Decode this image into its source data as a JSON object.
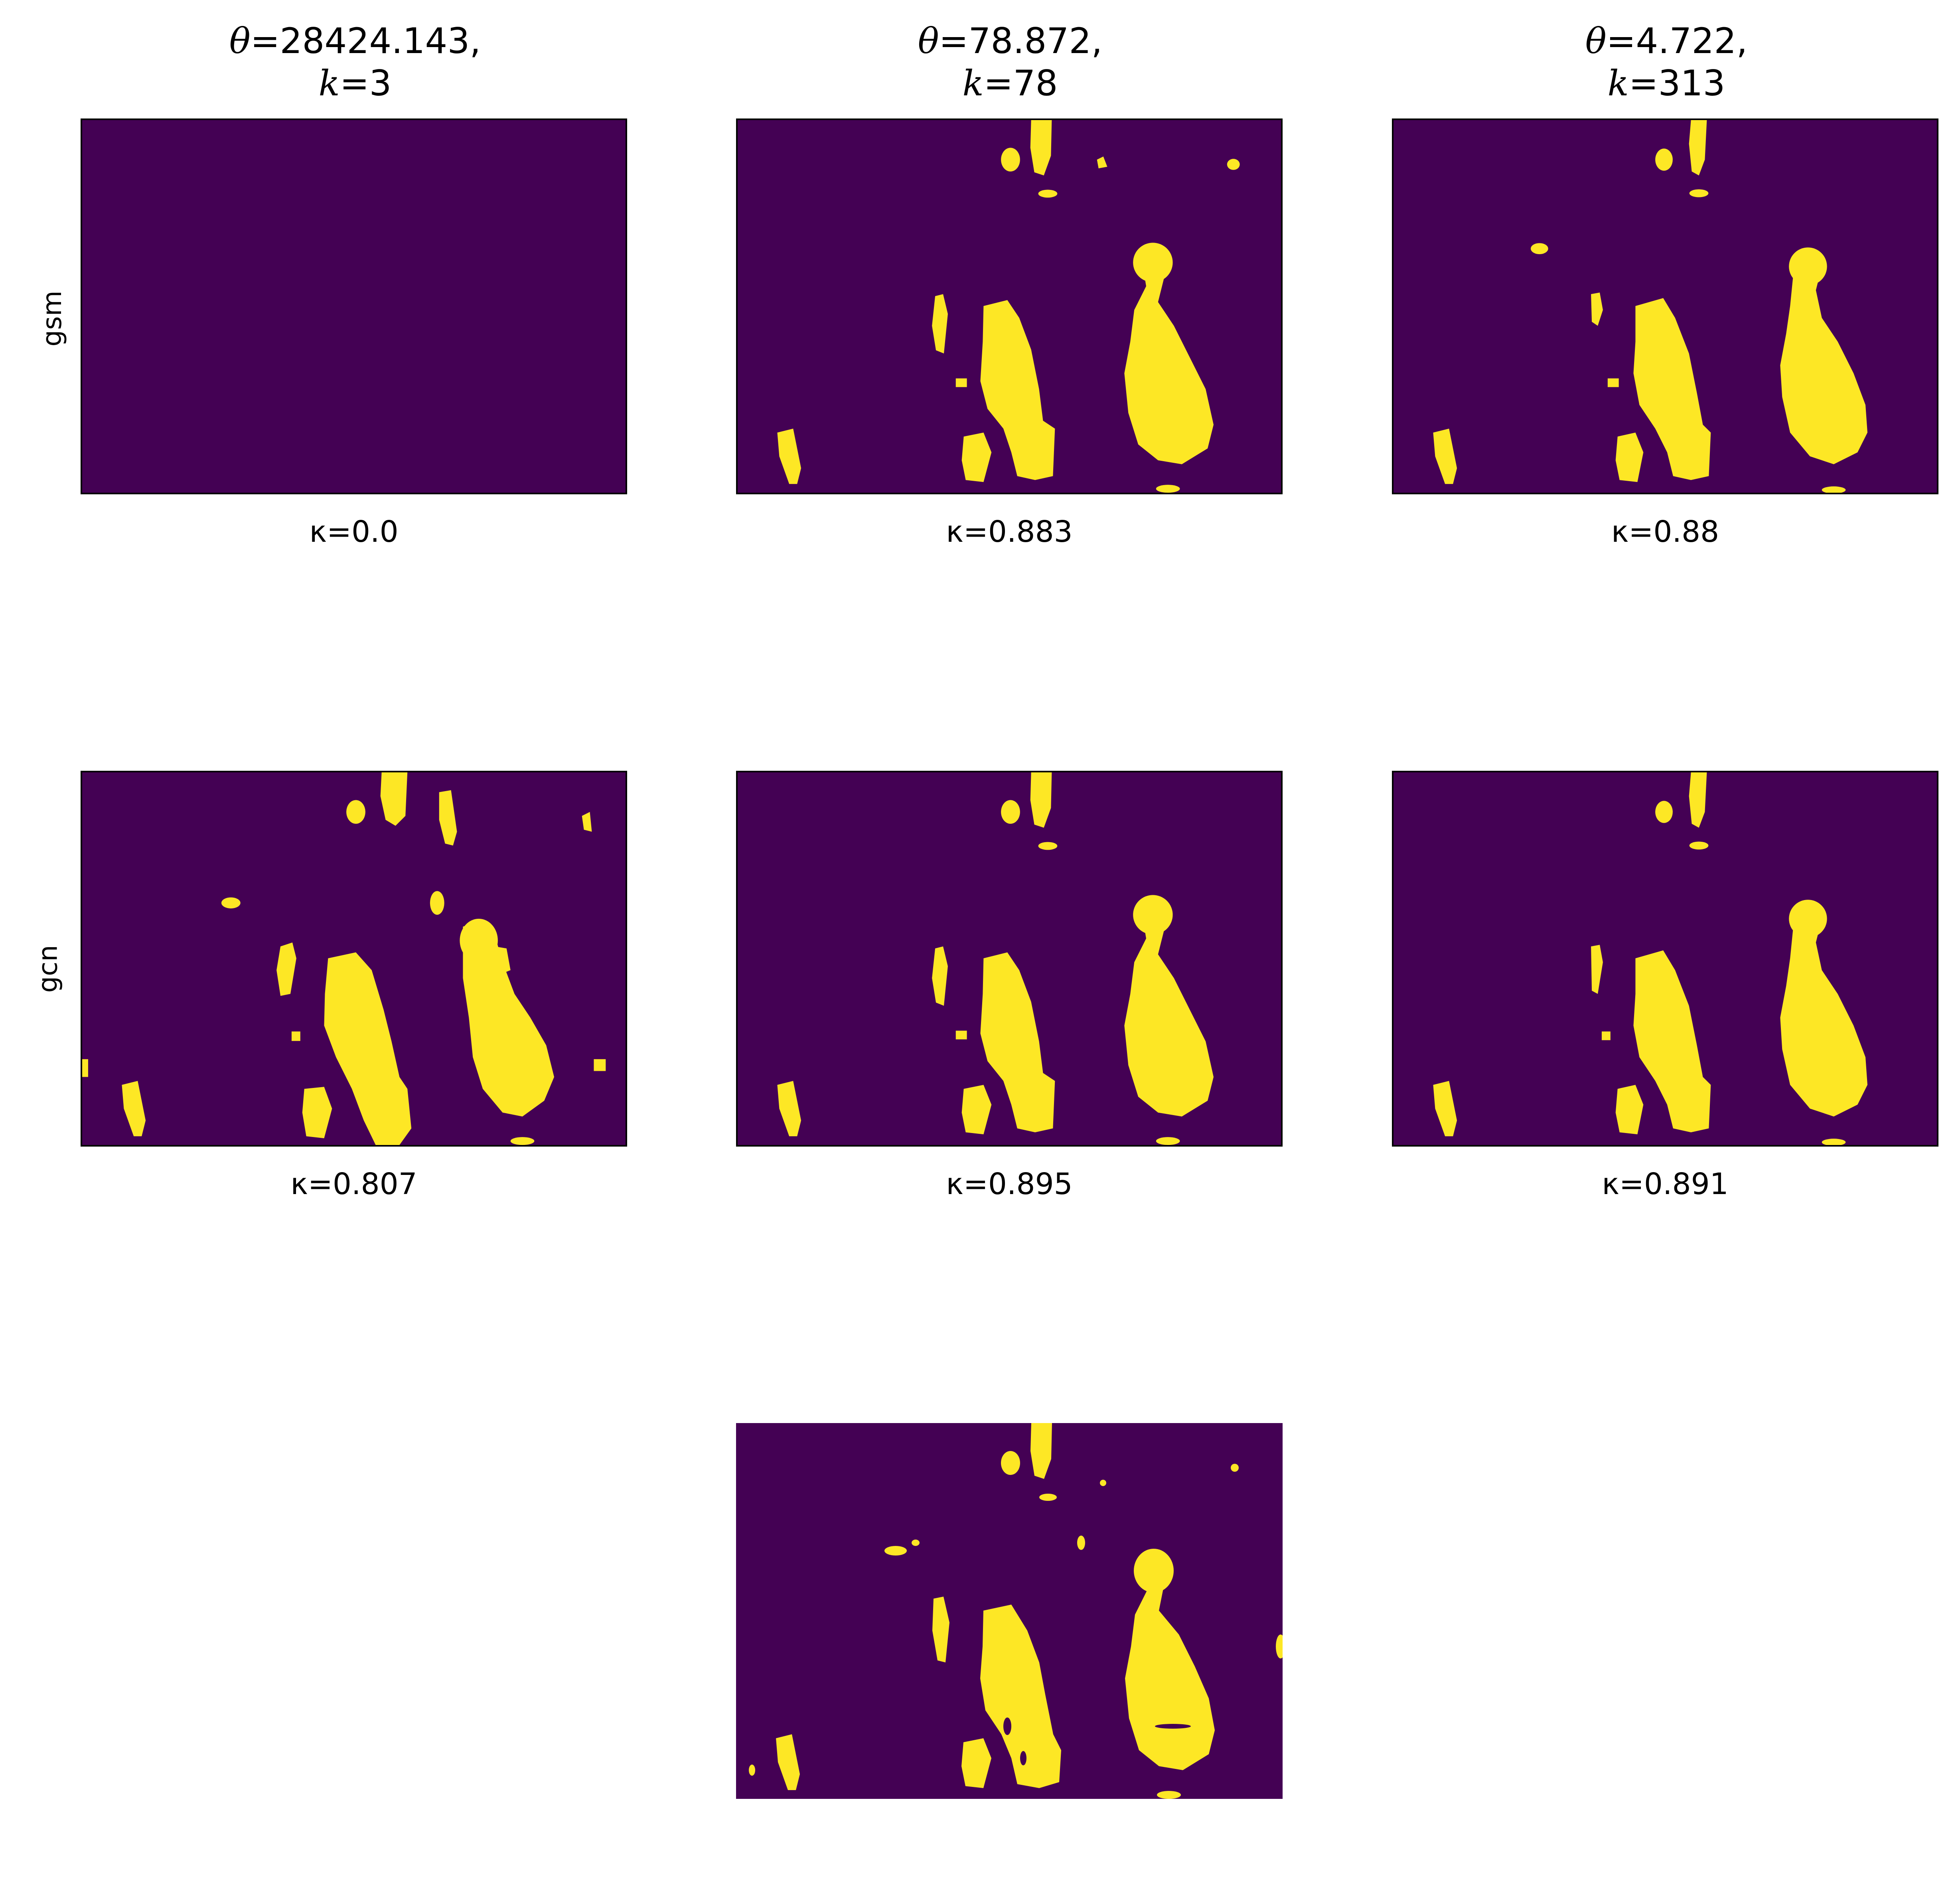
{
  "colors": {
    "background_class": "#440154",
    "foreground_class": "#fde725"
  },
  "columns": [
    {
      "theta_symbol": "θ",
      "theta_value": "=28424.143,",
      "k_symbol": "k",
      "k_value": "=3"
    },
    {
      "theta_symbol": "θ",
      "theta_value": "=78.872,",
      "k_symbol": "k",
      "k_value": "=78"
    },
    {
      "theta_symbol": "θ",
      "theta_value": "=4.722,",
      "k_symbol": "k",
      "k_value": "=313"
    }
  ],
  "rows": [
    {
      "label": "gsm",
      "kappas": [
        "κ=0.0",
        "κ=0.883",
        "κ=0.88"
      ]
    },
    {
      "label": "gcn",
      "kappas": [
        "κ=0.807",
        "κ=0.895",
        "κ=0.891"
      ]
    }
  ]
}
